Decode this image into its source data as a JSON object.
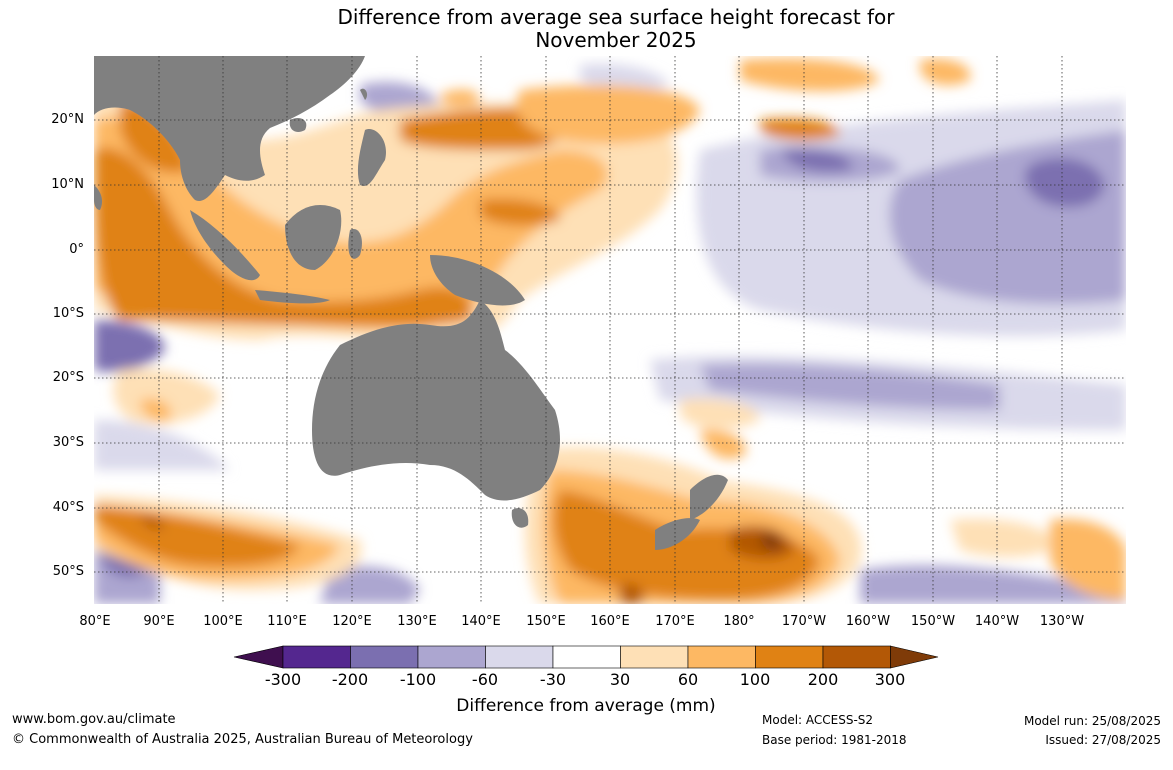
{
  "title": {
    "line1": "Difference from average sea surface height forecast for",
    "line2": "November 2025"
  },
  "map": {
    "region": "Indo-Pacific",
    "projection": "equirectangular",
    "lon_range": [
      "80°E",
      "130°W"
    ],
    "lat_range": [
      "55°S",
      "30°N"
    ],
    "land_color": "#808080",
    "gridlines": "dotted",
    "lat_labels": [
      "20°N",
      "10°N",
      "0°",
      "10°S",
      "20°S",
      "30°S",
      "40°S",
      "50°S"
    ],
    "lon_labels": [
      "80°E",
      "90°E",
      "100°E",
      "110°E",
      "120°E",
      "130°E",
      "140°E",
      "150°E",
      "160°E",
      "170°E",
      "180°",
      "170°W",
      "160°W",
      "150°W",
      "140°W",
      "130°W"
    ]
  },
  "colorbar": {
    "ticks": [
      "-300",
      "-200",
      "-100",
      "-60",
      "-30",
      "30",
      "60",
      "100",
      "200",
      "300"
    ],
    "label": "Difference from average (mm)",
    "colors": [
      "#3f0f4f",
      "#54278f",
      "#7b6fb0",
      "#aca6d0",
      "#dad9eb",
      "#ffffff",
      "#fee0b6",
      "#fdb863",
      "#e08214",
      "#b35806",
      "#7f3b08"
    ]
  },
  "footer": {
    "website": "www.bom.gov.au/climate",
    "copyright": "© Commonwealth of Australia 2025, Australian Bureau of Meteorology",
    "model": "Model: ACCESS-S2",
    "base_period": "Base period: 1981-2018",
    "model_run": "Model run: 25/08/2025",
    "issued": "Issued: 27/08/2025"
  }
}
